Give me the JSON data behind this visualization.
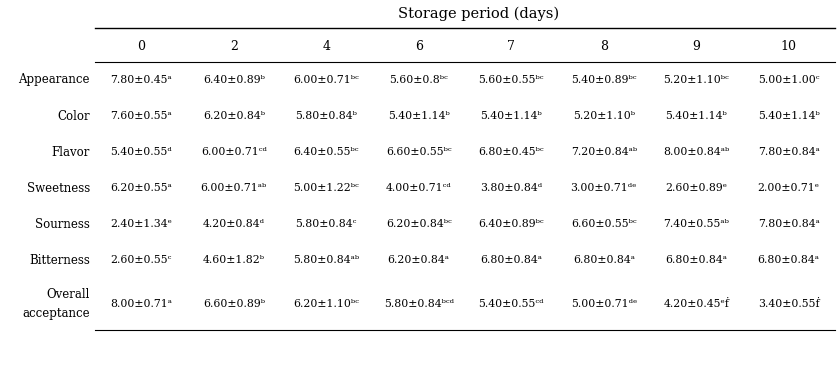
{
  "title": "Storage period (days)",
  "columns": [
    "0",
    "2",
    "4",
    "6",
    "7",
    "8",
    "9",
    "10"
  ],
  "rows": [
    {
      "label": "Appearance",
      "label2": null,
      "values": [
        "7.80±0.45ᵃ",
        "6.40±0.89ᵇ",
        "6.00±0.71ᵇᶜ",
        "5.60±0.8ᵇᶜ",
        "5.60±0.55ᵇᶜ",
        "5.40±0.89ᵇᶜ",
        "5.20±1.10ᵇᶜ",
        "5.00±1.00ᶜ"
      ]
    },
    {
      "label": "Color",
      "label2": null,
      "values": [
        "7.60±0.55ᵃ",
        "6.20±0.84ᵇ",
        "5.80±0.84ᵇ",
        "5.40±1.14ᵇ",
        "5.40±1.14ᵇ",
        "5.20±1.10ᵇ",
        "5.40±1.14ᵇ",
        "5.40±1.14ᵇ"
      ]
    },
    {
      "label": "Flavor",
      "label2": null,
      "values": [
        "5.40±0.55ᵈ",
        "6.00±0.71ᶜᵈ",
        "6.40±0.55ᵇᶜ",
        "6.60±0.55ᵇᶜ",
        "6.80±0.45ᵇᶜ",
        "7.20±0.84ᵃᵇ",
        "8.00±0.84ᵃᵇ",
        "7.80±0.84ᵃ"
      ]
    },
    {
      "label": "Sweetness",
      "label2": null,
      "values": [
        "6.20±0.55ᵃ",
        "6.00±0.71ᵃᵇ",
        "5.00±1.22ᵇᶜ",
        "4.00±0.71ᶜᵈ",
        "3.80±0.84ᵈ",
        "3.00±0.71ᵈᵉ",
        "2.60±0.89ᵉ",
        "2.00±0.71ᵉ"
      ]
    },
    {
      "label": "Sourness",
      "label2": null,
      "values": [
        "2.40±1.34ᵉ",
        "4.20±0.84ᵈ",
        "5.80±0.84ᶜ",
        "6.20±0.84ᵇᶜ",
        "6.40±0.89ᵇᶜ",
        "6.60±0.55ᵇᶜ",
        "7.40±0.55ᵃᵇ",
        "7.80±0.84ᵃ"
      ]
    },
    {
      "label": "Bitterness",
      "label2": null,
      "values": [
        "2.60±0.55ᶜ",
        "4.60±1.82ᵇ",
        "5.80±0.84ᵃᵇ",
        "6.20±0.84ᵃ",
        "6.80±0.84ᵃ",
        "6.80±0.84ᵃ",
        "6.80±0.84ᵃ",
        "6.80±0.84ᵃ"
      ]
    },
    {
      "label": "Overall",
      "label2": "acceptance",
      "values": [
        "8.00±0.71ᵃ",
        "6.60±0.89ᵇ",
        "6.20±1.10ᵇᶜ",
        "5.80±0.84ᵇᶜᵈ",
        "5.40±0.55ᶜᵈ",
        "5.00±0.71ᵈᵉ",
        "4.20±0.45ᵉḟ",
        "3.40±0.55ḟ"
      ]
    }
  ],
  "font_family": "DejaVu Serif",
  "data_font_size": 7.8,
  "label_font_size": 8.5,
  "header_font_size": 9.0,
  "title_font_size": 10.5,
  "bg_color": "#ffffff",
  "line_color": "#000000",
  "fig_width": 8.4,
  "fig_height": 3.8,
  "dpi": 100
}
